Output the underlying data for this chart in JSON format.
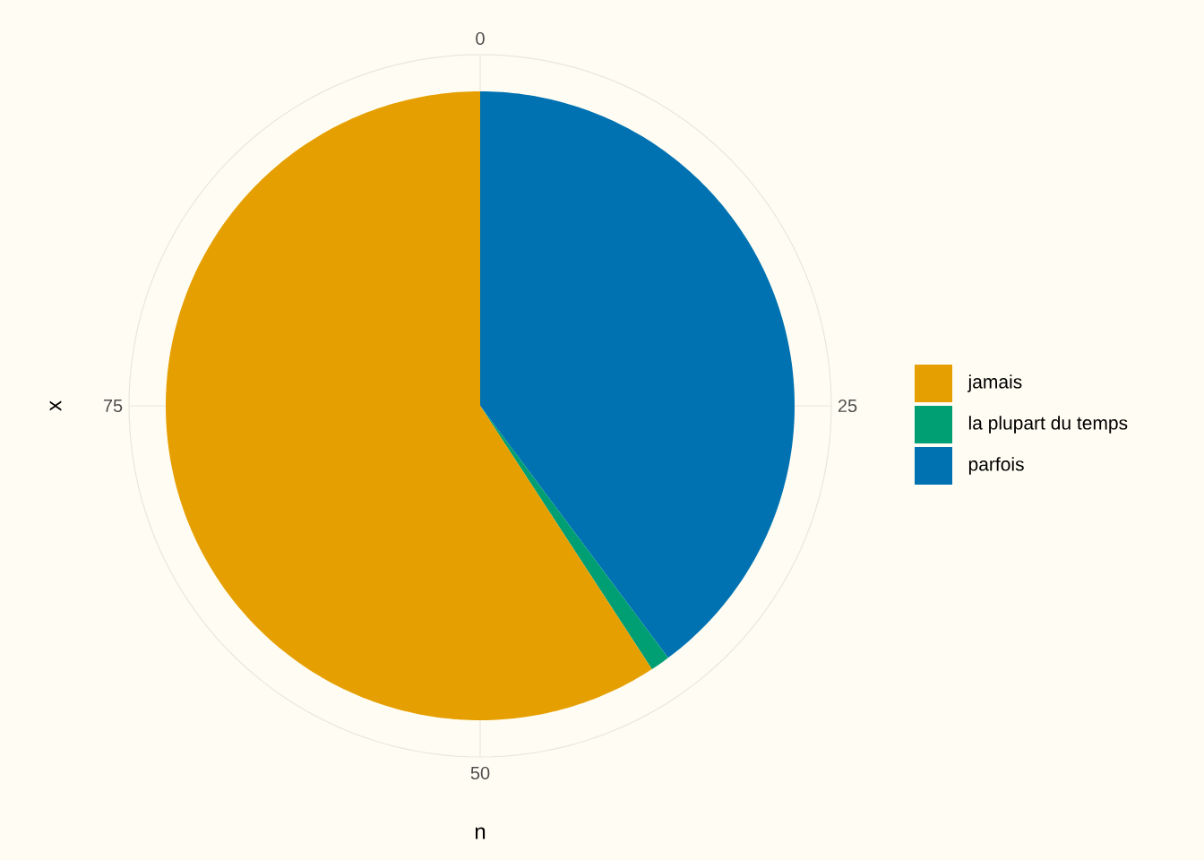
{
  "chart_data": {
    "type": "pie",
    "xlabel": "n",
    "ylabel": "x",
    "categories": [
      "jamais",
      "la plupart du temps",
      "parfois"
    ],
    "values": [
      59.2,
      1.0,
      39.8
    ],
    "colors": [
      "#e69f00",
      "#009e73",
      "#0072b2"
    ],
    "annotations": [
      "0",
      "25",
      "50",
      "75"
    ],
    "grid": true,
    "legend": "right"
  }
}
